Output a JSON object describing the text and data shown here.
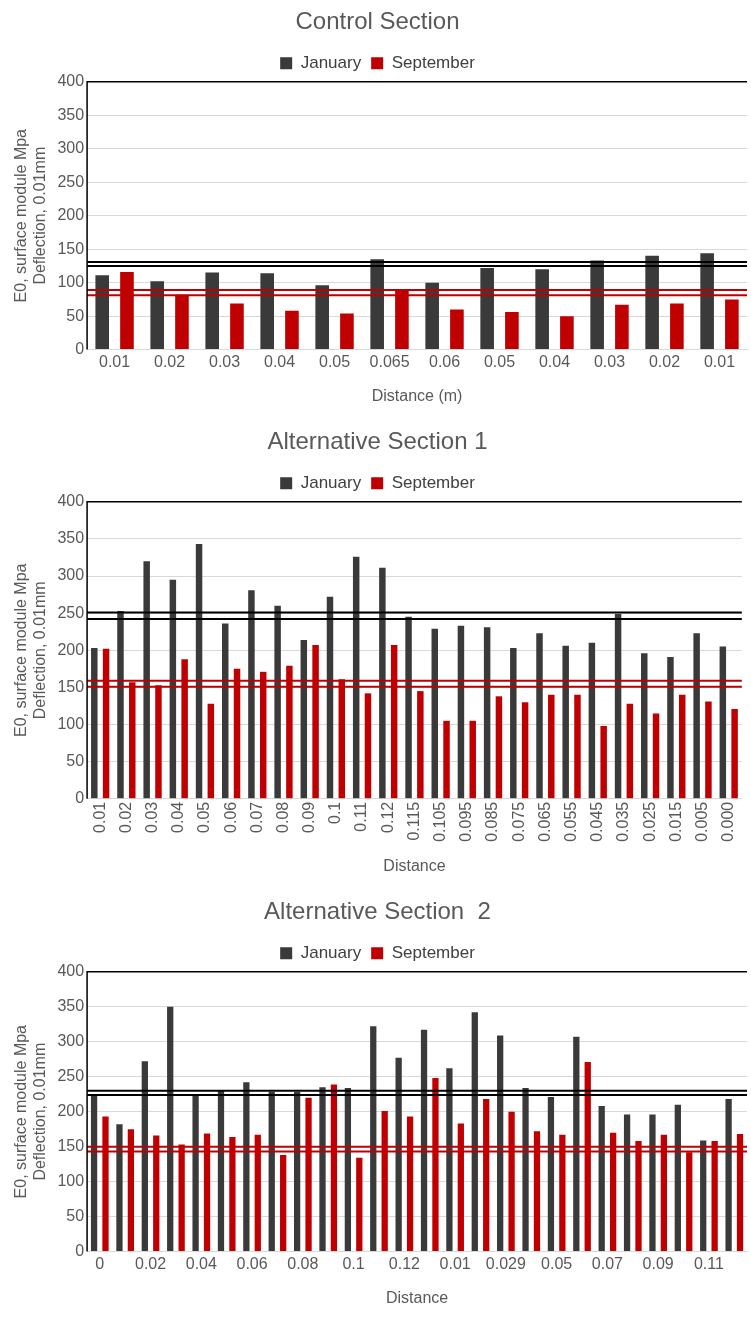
{
  "chart_data": [
    {
      "type": "bar",
      "title": "Control Section",
      "xlabel": "Distance (m)",
      "ylabel": "E0, surface module Mpa\nDeflection, 0.01mm",
      "categories": [
        "0.01",
        "0.02",
        "0.03",
        "0.04",
        "0.05",
        "0.065",
        "0.06",
        "0.05",
        "0.04",
        "0.03",
        "0.02",
        "0.01"
      ],
      "series": [
        {
          "name": "January",
          "color": "#3a3a3a",
          "values": [
            111,
            102,
            115,
            114,
            96,
            135,
            100,
            122,
            120,
            133,
            140,
            144
          ]
        },
        {
          "name": "September",
          "color": "#c00000",
          "values": [
            116,
            82,
            69,
            58,
            54,
            90,
            60,
            56,
            50,
            67,
            69,
            75
          ]
        }
      ],
      "ylim": [
        0,
        400
      ],
      "yticks": [
        0,
        50,
        100,
        150,
        200,
        250,
        300,
        350,
        400
      ],
      "grid": "y",
      "legend": "top",
      "ref_lines": [
        {
          "axis": "y",
          "value": 131,
          "color": "#000000"
        },
        {
          "axis": "y",
          "value": 125,
          "color": "#000000"
        },
        {
          "axis": "y",
          "value": 89,
          "color": "#c00000"
        },
        {
          "axis": "y",
          "value": 81,
          "color": "#c00000"
        }
      ]
    },
    {
      "type": "bar",
      "title": "Alternative Section 1",
      "xlabel": "Distance",
      "ylabel": "E0, surface module Mpa\nDeflection, 0.01mm",
      "categories": [
        "0.01",
        "0.02",
        "0.03",
        "0.04",
        "0.05",
        "0.06",
        "0.07",
        "0.08",
        "0.09",
        "0.1",
        "0.11",
        "0.12",
        "0.115",
        "0.105",
        "0.095",
        "0.085",
        "0.075",
        "0.065",
        "0.055",
        "0.045",
        "0.035",
        "0.025",
        "0.015",
        "0.005",
        "0.000"
      ],
      "series": [
        {
          "name": "January",
          "color": "#3a3a3a",
          "values": [
            203,
            253,
            320,
            295,
            343,
            236,
            281,
            260,
            214,
            272,
            326,
            311,
            245,
            229,
            233,
            231,
            203,
            223,
            206,
            210,
            249,
            196,
            191,
            223,
            205
          ]
        },
        {
          "name": "September",
          "color": "#c00000",
          "values": [
            202,
            157,
            153,
            188,
            128,
            175,
            171,
            179,
            207,
            161,
            142,
            207,
            145,
            105,
            105,
            138,
            130,
            140,
            140,
            98,
            128,
            115,
            140,
            131,
            121
          ]
        }
      ],
      "ylim": [
        0,
        400
      ],
      "yticks": [
        0,
        50,
        100,
        150,
        200,
        250,
        300,
        350,
        400
      ],
      "grid": "y",
      "legend": "top",
      "ref_lines": [
        {
          "axis": "y",
          "value": 251,
          "color": "#000000"
        },
        {
          "axis": "y",
          "value": 242,
          "color": "#000000"
        },
        {
          "axis": "y",
          "value": 159,
          "color": "#c00000"
        },
        {
          "axis": "y",
          "value": 151,
          "color": "#c00000"
        }
      ]
    },
    {
      "type": "bar",
      "title": "Alternative Section  2",
      "xlabel": "Distance",
      "ylabel": "E0, surface module Mpa\nDeflection, 0.01mm",
      "categories": [
        "0",
        null,
        "0.02",
        null,
        "0.04",
        null,
        "0.06",
        null,
        "0.08",
        null,
        "0.1",
        null,
        "0.12",
        null,
        "0.01",
        null,
        "0.029",
        null,
        "0.05",
        null,
        "0.07",
        null,
        "0.09",
        null,
        "0.11",
        null
      ],
      "series": [
        {
          "name": "January",
          "color": "#3a3a3a",
          "values": [
            223,
            182,
            272,
            350,
            223,
            230,
            242,
            228,
            228,
            235,
            234,
            322,
            277,
            317,
            262,
            342,
            309,
            234,
            221,
            307,
            208,
            196,
            196,
            210,
            159,
            218
          ]
        },
        {
          "name": "September",
          "color": "#c00000",
          "values": [
            193,
            175,
            166,
            153,
            169,
            164,
            167,
            138,
            220,
            239,
            134,
            201,
            193,
            248,
            183,
            218,
            200,
            172,
            167,
            271,
            170,
            158,
            167,
            142,
            158,
            168
          ]
        }
      ],
      "ylim": [
        0,
        400
      ],
      "yticks": [
        0,
        50,
        100,
        150,
        200,
        250,
        300,
        350,
        400
      ],
      "grid": "y",
      "legend": "top",
      "ref_lines": [
        {
          "axis": "y",
          "value": 230,
          "color": "#000000"
        },
        {
          "axis": "y",
          "value": 224,
          "color": "#000000"
        },
        {
          "axis": "y",
          "value": 150,
          "color": "#c00000"
        },
        {
          "axis": "y",
          "value": 143,
          "color": "#c00000"
        }
      ]
    }
  ]
}
